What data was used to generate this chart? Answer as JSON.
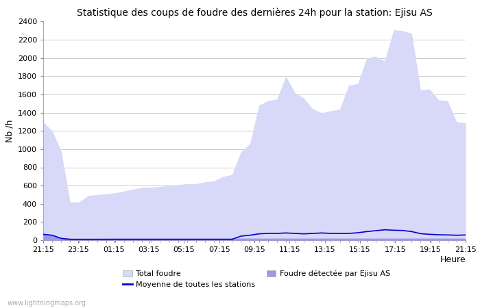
{
  "title": "Statistique des coups de foudre des dernières 24h pour la station: Ejisu AS",
  "xlabel": "Heure",
  "ylabel": "Nb /h",
  "watermark": "www.lightningmaps.org",
  "xlim_labels": [
    "21:15",
    "23:15",
    "01:15",
    "03:15",
    "05:15",
    "07:15",
    "09:15",
    "11:15",
    "13:15",
    "15:15",
    "17:15",
    "19:15",
    "21:15"
  ],
  "ylim": [
    0,
    2400
  ],
  "yticks": [
    0,
    200,
    400,
    600,
    800,
    1000,
    1200,
    1400,
    1600,
    1800,
    2000,
    2200,
    2400
  ],
  "legend": {
    "total_foudre": "Total foudre",
    "foudre_station": "Foudre détectée par Ejisu AS",
    "moyenne": "Moyenne de toutes les stations"
  },
  "color_total": "#d8d8f8",
  "color_station": "#9999ee",
  "color_moyenne": "#0000cc",
  "background": "#ffffff",
  "grid_color": "#cccccc",
  "total_foudre": [
    1300,
    1200,
    980,
    420,
    420,
    490,
    500,
    510,
    520,
    540,
    560,
    580,
    580,
    590,
    600,
    610,
    620,
    620,
    640,
    650,
    700,
    720,
    970,
    1060,
    1480,
    1530,
    1550,
    1800,
    1620,
    1560,
    1440,
    1400,
    1420,
    1440,
    1700,
    1720,
    2000,
    2020,
    1970,
    2310,
    2300,
    2270,
    1650,
    1660,
    1540,
    1530,
    1300,
    1290
  ],
  "foudre_ejisu": [
    70,
    60,
    30,
    20,
    18,
    18,
    20,
    20,
    22,
    22,
    22,
    22,
    22,
    22,
    22,
    22,
    22,
    22,
    22,
    22,
    22,
    22,
    22,
    22,
    22,
    22,
    22,
    22,
    22,
    22,
    22,
    22,
    22,
    22,
    22,
    22,
    22,
    22,
    22,
    22,
    22,
    22,
    22,
    22,
    22,
    22,
    22,
    22
  ],
  "moyenne_stations": [
    65,
    55,
    20,
    10,
    10,
    10,
    10,
    10,
    10,
    10,
    10,
    10,
    10,
    10,
    10,
    10,
    10,
    10,
    10,
    10,
    10,
    10,
    45,
    55,
    70,
    75,
    75,
    80,
    75,
    70,
    75,
    80,
    75,
    75,
    75,
    82,
    95,
    105,
    115,
    110,
    107,
    95,
    72,
    65,
    60,
    58,
    55,
    58
  ]
}
